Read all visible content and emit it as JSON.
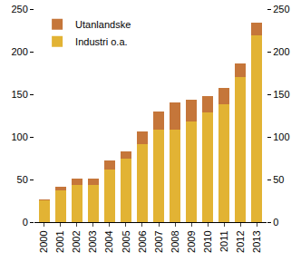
{
  "chart_data": {
    "type": "bar",
    "stacked": true,
    "categories": [
      "2000",
      "2001",
      "2002",
      "2003",
      "2004",
      "2005",
      "2006",
      "2007",
      "2008",
      "2009",
      "2010",
      "2011",
      "2012",
      "2013"
    ],
    "series": [
      {
        "name": "Industri o.a.",
        "color": "#e2b334",
        "values": [
          26,
          37,
          44,
          44,
          62,
          75,
          92,
          109,
          108,
          118,
          129,
          138,
          170,
          219
        ]
      },
      {
        "name": "Utanlandske",
        "color": "#c5763a",
        "values": [
          1,
          5,
          7,
          7,
          10,
          8,
          14,
          21,
          32,
          26,
          19,
          19,
          16,
          15
        ]
      }
    ],
    "ylim": [
      0,
      250
    ],
    "yticks": [
      0,
      50,
      100,
      150,
      200,
      250
    ],
    "grid": false,
    "legend": "top-left"
  }
}
